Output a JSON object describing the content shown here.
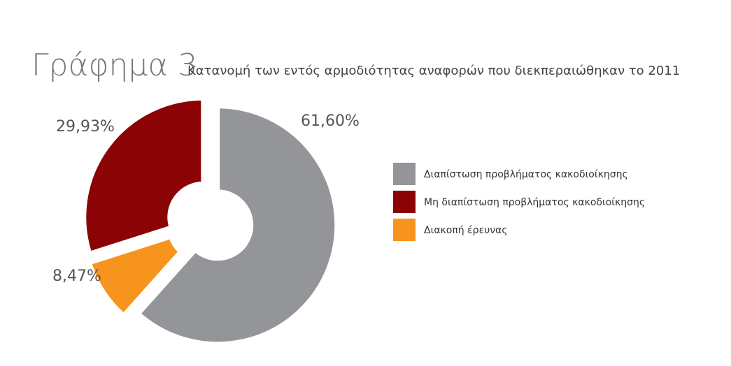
{
  "chart_data": {
    "type": "donut",
    "title": "Γράφημα 3",
    "subtitle": "Κατανομή των εντός αρμοδιότητας αναφορών που διεκπεραιώθηκαν το 2011",
    "series": [
      {
        "name": "Διαπίστωση προβλήματος κακοδιοίκησης",
        "color": "#939598",
        "values": [
          61.6
        ],
        "value_labels": [
          "61,60%"
        ]
      },
      {
        "name": "Μη διαπίστωση προβλήματος κακοδιοίκησης",
        "color": "#8b0304",
        "values": [
          29.93
        ],
        "value_labels": [
          "29,93%"
        ]
      },
      {
        "name": "Διακοπή έρευνας",
        "color": "#f7941d",
        "values": [
          8.47
        ],
        "value_labels": [
          "8,47%"
        ]
      }
    ]
  }
}
